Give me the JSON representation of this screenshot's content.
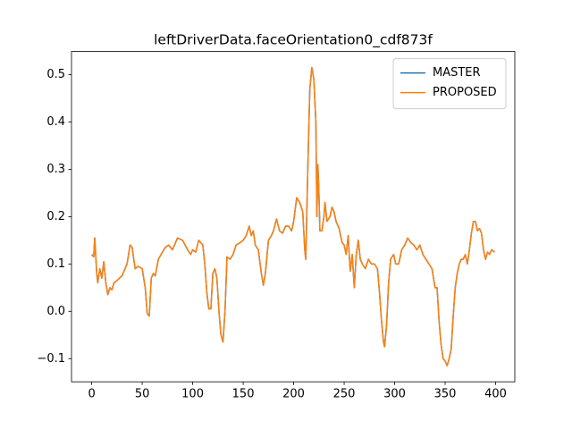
{
  "chart_data": {
    "type": "line",
    "title": "leftDriverData.faceOrientation0_cdf873f",
    "x": [
      0,
      2,
      3,
      5,
      6,
      8,
      10,
      12,
      14,
      16,
      18,
      20,
      22,
      25,
      30,
      35,
      38,
      40,
      43,
      46,
      50,
      53,
      55,
      57,
      59,
      61,
      63,
      66,
      70,
      73,
      76,
      80,
      85,
      90,
      95,
      98,
      100,
      103,
      106,
      110,
      112,
      114,
      116,
      118,
      120,
      122,
      124,
      126,
      128,
      130,
      132,
      134,
      137,
      140,
      143,
      147,
      150,
      153,
      156,
      158,
      160,
      162,
      165,
      168,
      170,
      172,
      175,
      178,
      180,
      183,
      186,
      189,
      192,
      195,
      198,
      200,
      203,
      206,
      209,
      211,
      212,
      214,
      216,
      218,
      220,
      222,
      223,
      224,
      225,
      226,
      228,
      230,
      231,
      233,
      236,
      238,
      240,
      242,
      245,
      248,
      250,
      252,
      254,
      256,
      258,
      260,
      262,
      264,
      266,
      268,
      271,
      274,
      277,
      280,
      283,
      285,
      287,
      289,
      290,
      292,
      294,
      296,
      299,
      301,
      304,
      307,
      310,
      313,
      316,
      319,
      322,
      325,
      328,
      331,
      334,
      337,
      340,
      342,
      344,
      346,
      348,
      350,
      352,
      354,
      356,
      358,
      360,
      362,
      364,
      366,
      368,
      370,
      372,
      374,
      376,
      378,
      380,
      382,
      384,
      386,
      388,
      390,
      392,
      394,
      396,
      399
    ],
    "series": [
      {
        "name": "MASTER",
        "color": "#1f77b4",
        "values": [
          0.12,
          0.115,
          0.155,
          0.08,
          0.06,
          0.09,
          0.07,
          0.105,
          0.06,
          0.035,
          0.05,
          0.045,
          0.06,
          0.065,
          0.075,
          0.1,
          0.14,
          0.135,
          0.09,
          0.095,
          0.09,
          0.05,
          -0.005,
          -0.01,
          0.07,
          0.08,
          0.075,
          0.11,
          0.125,
          0.135,
          0.14,
          0.13,
          0.155,
          0.15,
          0.13,
          0.12,
          0.13,
          0.125,
          0.15,
          0.14,
          0.1,
          0.04,
          0.005,
          0.005,
          0.08,
          0.09,
          0.07,
          0.0,
          -0.05,
          -0.065,
          0.0,
          0.115,
          0.11,
          0.12,
          0.14,
          0.145,
          0.15,
          0.16,
          0.18,
          0.16,
          0.17,
          0.14,
          0.13,
          0.08,
          0.055,
          0.08,
          0.15,
          0.16,
          0.17,
          0.195,
          0.17,
          0.165,
          0.18,
          0.18,
          0.17,
          0.19,
          0.24,
          0.23,
          0.21,
          0.13,
          0.11,
          0.3,
          0.47,
          0.515,
          0.49,
          0.4,
          0.2,
          0.31,
          0.25,
          0.17,
          0.17,
          0.2,
          0.23,
          0.19,
          0.2,
          0.22,
          0.21,
          0.19,
          0.175,
          0.145,
          0.14,
          0.12,
          0.16,
          0.085,
          0.12,
          0.05,
          0.12,
          0.15,
          0.11,
          0.1,
          0.09,
          0.11,
          0.1,
          0.1,
          0.09,
          0.04,
          -0.02,
          -0.065,
          -0.075,
          -0.03,
          0.06,
          0.11,
          0.12,
          0.1,
          0.1,
          0.13,
          0.14,
          0.155,
          0.145,
          0.14,
          0.13,
          0.14,
          0.12,
          0.11,
          0.1,
          0.09,
          0.05,
          0.05,
          -0.02,
          -0.07,
          -0.1,
          -0.105,
          -0.115,
          -0.1,
          -0.08,
          -0.01,
          0.05,
          0.08,
          0.1,
          0.11,
          0.11,
          0.12,
          0.1,
          0.13,
          0.165,
          0.19,
          0.19,
          0.17,
          0.175,
          0.165,
          0.13,
          0.11,
          0.125,
          0.12,
          0.13,
          0.125
        ]
      },
      {
        "name": "PROPOSED",
        "color": "#ff7f0e",
        "values": [
          0.12,
          0.115,
          0.155,
          0.08,
          0.06,
          0.09,
          0.07,
          0.105,
          0.06,
          0.035,
          0.05,
          0.045,
          0.06,
          0.065,
          0.075,
          0.1,
          0.14,
          0.135,
          0.09,
          0.095,
          0.09,
          0.05,
          -0.005,
          -0.01,
          0.07,
          0.08,
          0.075,
          0.11,
          0.125,
          0.135,
          0.14,
          0.13,
          0.155,
          0.15,
          0.13,
          0.12,
          0.13,
          0.125,
          0.15,
          0.14,
          0.1,
          0.04,
          0.005,
          0.005,
          0.08,
          0.09,
          0.07,
          0.0,
          -0.05,
          -0.065,
          0.0,
          0.115,
          0.11,
          0.12,
          0.14,
          0.145,
          0.15,
          0.16,
          0.18,
          0.16,
          0.17,
          0.14,
          0.13,
          0.08,
          0.055,
          0.08,
          0.15,
          0.16,
          0.17,
          0.195,
          0.17,
          0.165,
          0.18,
          0.18,
          0.17,
          0.19,
          0.24,
          0.23,
          0.21,
          0.13,
          0.11,
          0.3,
          0.47,
          0.515,
          0.49,
          0.4,
          0.2,
          0.31,
          0.25,
          0.17,
          0.17,
          0.2,
          0.23,
          0.19,
          0.2,
          0.22,
          0.21,
          0.19,
          0.175,
          0.145,
          0.14,
          0.12,
          0.16,
          0.085,
          0.12,
          0.05,
          0.12,
          0.15,
          0.11,
          0.1,
          0.09,
          0.11,
          0.1,
          0.1,
          0.09,
          0.04,
          -0.02,
          -0.065,
          -0.075,
          -0.03,
          0.06,
          0.11,
          0.12,
          0.1,
          0.1,
          0.13,
          0.14,
          0.155,
          0.145,
          0.14,
          0.13,
          0.14,
          0.12,
          0.11,
          0.1,
          0.09,
          0.05,
          0.05,
          -0.02,
          -0.07,
          -0.1,
          -0.105,
          -0.115,
          -0.1,
          -0.08,
          -0.01,
          0.05,
          0.08,
          0.1,
          0.11,
          0.11,
          0.12,
          0.1,
          0.13,
          0.165,
          0.19,
          0.19,
          0.17,
          0.175,
          0.165,
          0.13,
          0.11,
          0.125,
          0.12,
          0.13,
          0.125
        ]
      }
    ],
    "xlim": [
      -20,
      419
    ],
    "xticks": [
      0,
      50,
      100,
      150,
      200,
      250,
      300,
      350,
      400
    ],
    "ylim": [
      -0.149,
      0.549
    ],
    "yticks": [
      {
        "value": -0.1,
        "label": "−0.1"
      },
      {
        "value": 0,
        "label": "0.0"
      },
      0.1,
      0.2,
      0.3,
      0.4,
      0.5
    ],
    "legend": "upper right",
    "grid": false
  }
}
